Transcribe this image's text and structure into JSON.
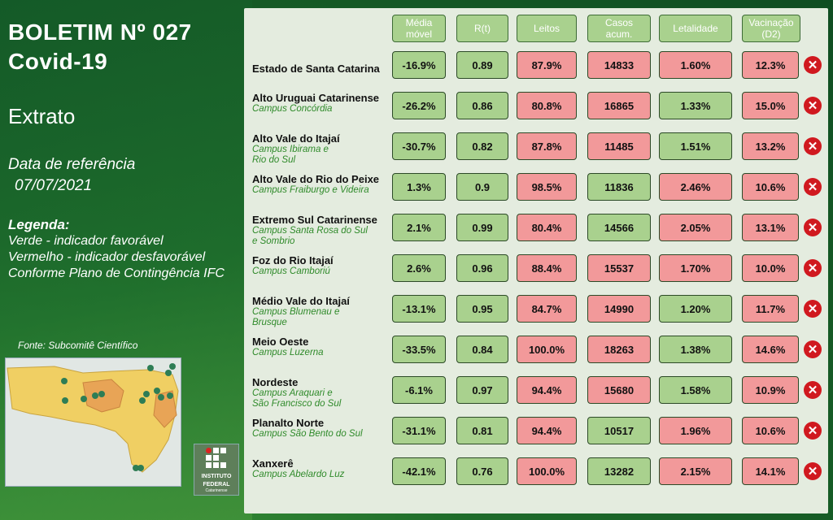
{
  "title": {
    "line1": "BOLETIM Nº 027",
    "line2": "Covid-19"
  },
  "subtitle": "Extrato",
  "reference": {
    "label": "Data de referência",
    "date": "07/07/2021"
  },
  "legend": {
    "title": "Legenda:",
    "lines": [
      "Verde - indicador favorável",
      "Vermelho - indicador desfavorável",
      "Conforme Plano de Contingência IFC"
    ]
  },
  "source": "Fonte: Subcomitê Científico",
  "logo": {
    "line1": "INSTITUTO",
    "line2": "FEDERAL",
    "line3": "Catarinense"
  },
  "colors": {
    "favorable": "#a9d18e",
    "unfavorable": "#f2999a",
    "status_icon": "#d0191f"
  },
  "headers": [
    {
      "l1": "Média",
      "l2": "móvel"
    },
    {
      "l1": "R(t)",
      "l2": ""
    },
    {
      "l1": "Leitos",
      "l2": ""
    },
    {
      "l1": "Casos",
      "l2": "acum."
    },
    {
      "l1": "Letalidade",
      "l2": ""
    },
    {
      "l1": "Vacinação",
      "l2": "(D2)"
    }
  ],
  "rows": [
    {
      "name": "Estado de Santa Catarina",
      "c1": "",
      "c2": "",
      "v": [
        "-16.9%",
        "0.89",
        "87.9%",
        "14833",
        "1.60%",
        "12.3%"
      ],
      "s": [
        "g",
        "g",
        "r",
        "r",
        "r",
        "r"
      ],
      "icon": "close-icon"
    },
    {
      "name": "Alto Uruguai Catarinense",
      "c1": "Campus Concórdia",
      "c2": "",
      "v": [
        "-26.2%",
        "0.86",
        "80.8%",
        "16865",
        "1.33%",
        "15.0%"
      ],
      "s": [
        "g",
        "g",
        "r",
        "r",
        "g",
        "r"
      ],
      "icon": "close-icon"
    },
    {
      "name": "Alto Vale do Itajaí",
      "c1": "Campus Ibirama e",
      "c2": "Rio do Sul",
      "v": [
        "-30.7%",
        "0.82",
        "87.8%",
        "11485",
        "1.51%",
        "13.2%"
      ],
      "s": [
        "g",
        "g",
        "r",
        "r",
        "g",
        "r"
      ],
      "icon": "close-icon"
    },
    {
      "name": "Alto Vale do Rio do Peixe",
      "c1": "Campus Fraiburgo e Videira",
      "c2": "",
      "v": [
        "1.3%",
        "0.9",
        "98.5%",
        "11836",
        "2.46%",
        "10.6%"
      ],
      "s": [
        "g",
        "g",
        "r",
        "g",
        "r",
        "r"
      ],
      "icon": "close-icon"
    },
    {
      "name": "Extremo Sul Catarinense",
      "c1": "Campus Santa Rosa do Sul",
      "c2": "e Sombrio",
      "v": [
        "2.1%",
        "0.99",
        "80.4%",
        "14566",
        "2.05%",
        "13.1%"
      ],
      "s": [
        "g",
        "g",
        "r",
        "g",
        "r",
        "r"
      ],
      "icon": "close-icon"
    },
    {
      "name": "Foz do Rio Itajaí",
      "c1": "Campus Camboriú",
      "c2": "",
      "v": [
        "2.6%",
        "0.96",
        "88.4%",
        "15537",
        "1.70%",
        "10.0%"
      ],
      "s": [
        "g",
        "g",
        "r",
        "r",
        "r",
        "r"
      ],
      "icon": "close-icon"
    },
    {
      "name": "Médio Vale do Itajaí",
      "c1": "Campus Blumenau e",
      "c2": "Brusque",
      "v": [
        "-13.1%",
        "0.95",
        "84.7%",
        "14990",
        "1.20%",
        "11.7%"
      ],
      "s": [
        "g",
        "g",
        "r",
        "r",
        "g",
        "r"
      ],
      "icon": "close-icon"
    },
    {
      "name": "Meio Oeste",
      "c1": "Campus Luzerna",
      "c2": "",
      "v": [
        "-33.5%",
        "0.84",
        "100.0%",
        "18263",
        "1.38%",
        "14.6%"
      ],
      "s": [
        "g",
        "g",
        "r",
        "r",
        "g",
        "r"
      ],
      "icon": "close-icon"
    },
    {
      "name": "Nordeste",
      "c1": "Campus Araquari e",
      "c2": "São Francisco do Sul",
      "v": [
        "-6.1%",
        "0.97",
        "94.4%",
        "15680",
        "1.58%",
        "10.9%"
      ],
      "s": [
        "g",
        "g",
        "r",
        "r",
        "g",
        "r"
      ],
      "icon": "close-icon"
    },
    {
      "name": "Planalto Norte",
      "c1": "Campus São Bento do Sul",
      "c2": "",
      "v": [
        "-31.1%",
        "0.81",
        "94.4%",
        "10517",
        "1.96%",
        "10.6%"
      ],
      "s": [
        "g",
        "g",
        "r",
        "g",
        "r",
        "r"
      ],
      "icon": "close-icon"
    },
    {
      "name": "Xanxerê",
      "c1": "Campus Abelardo Luz",
      "c2": "",
      "v": [
        "-42.1%",
        "0.76",
        "100.0%",
        "13282",
        "2.15%",
        "14.1%"
      ],
      "s": [
        "g",
        "g",
        "r",
        "g",
        "r",
        "r"
      ],
      "icon": "close-icon"
    }
  ]
}
